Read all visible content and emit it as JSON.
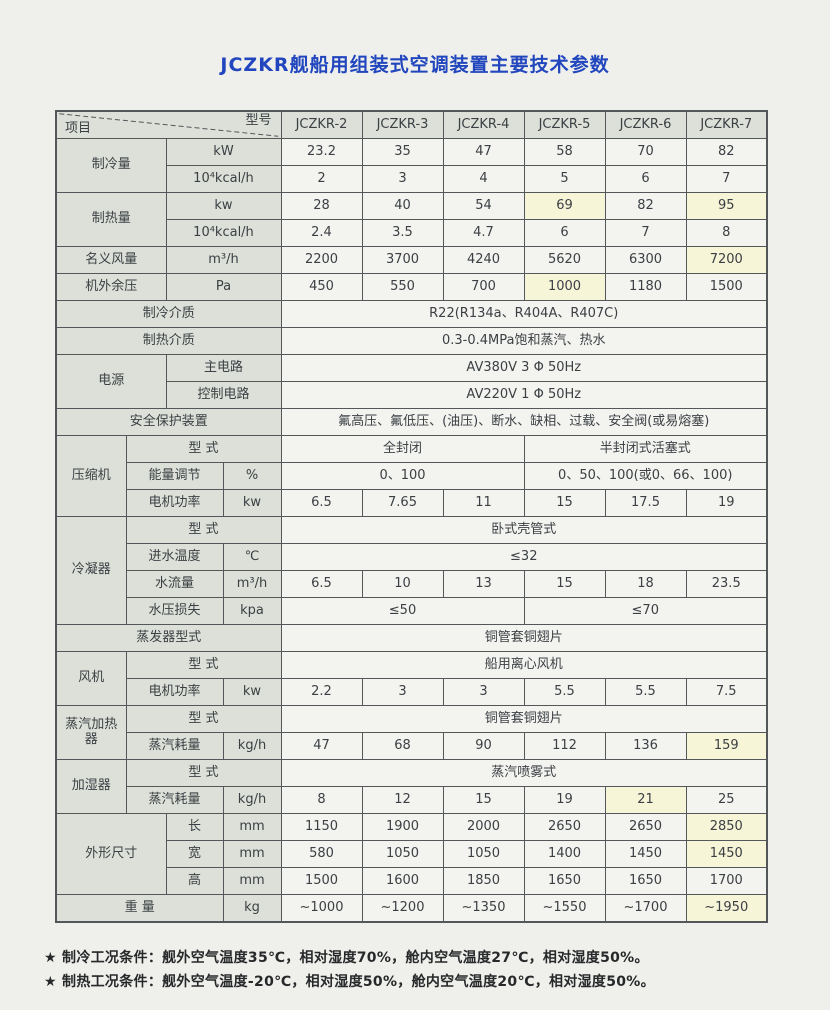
{
  "colors": {
    "page_background": "#eff0ec",
    "title_blue": "#2146bd",
    "label_cell": "#dce0d8",
    "data_cell": "#f3f4f0",
    "highlight_cell": "#f7f5d8",
    "border": "#54575a"
  },
  "title": "JCZKR舰船用组装式空调装置主要技术参数",
  "table": {
    "corner_top_right": "型号",
    "corner_bottom_left": "项目",
    "models": [
      "JCZKR-2",
      "JCZKR-3",
      "JCZKR-4",
      "JCZKR-5",
      "JCZKR-6",
      "JCZKR-7"
    ],
    "rows": [
      [
        {
          "t": "制冷量",
          "lab": true,
          "cs": 2,
          "rs": 2
        },
        {
          "t": "kW",
          "lab": true,
          "cs": 2
        },
        {
          "t": "23.2"
        },
        {
          "t": "35"
        },
        {
          "t": "47"
        },
        {
          "t": "58"
        },
        {
          "t": "70"
        },
        {
          "t": "82"
        }
      ],
      [
        {
          "t": "10⁴kcal/h",
          "lab": true,
          "cs": 2
        },
        {
          "t": "2"
        },
        {
          "t": "3"
        },
        {
          "t": "4"
        },
        {
          "t": "5"
        },
        {
          "t": "6"
        },
        {
          "t": "7"
        }
      ],
      [
        {
          "t": "制热量",
          "lab": true,
          "cs": 2,
          "rs": 2
        },
        {
          "t": "kw",
          "lab": true,
          "cs": 2
        },
        {
          "t": "28"
        },
        {
          "t": "40"
        },
        {
          "t": "54"
        },
        {
          "t": "69",
          "hl": true
        },
        {
          "t": "82"
        },
        {
          "t": "95",
          "hl": true
        }
      ],
      [
        {
          "t": "10⁴kcal/h",
          "lab": true,
          "cs": 2
        },
        {
          "t": "2.4"
        },
        {
          "t": "3.5"
        },
        {
          "t": "4.7"
        },
        {
          "t": "6"
        },
        {
          "t": "7"
        },
        {
          "t": "8"
        }
      ],
      [
        {
          "t": "名义风量",
          "lab": true,
          "cs": 2
        },
        {
          "t": "m³/h",
          "lab": true,
          "cs": 2
        },
        {
          "t": "2200"
        },
        {
          "t": "3700"
        },
        {
          "t": "4240"
        },
        {
          "t": "5620"
        },
        {
          "t": "6300"
        },
        {
          "t": "7200",
          "hl": true
        }
      ],
      [
        {
          "t": "机外余压",
          "lab": true,
          "cs": 2
        },
        {
          "t": "Pa",
          "lab": true,
          "cs": 2
        },
        {
          "t": "450"
        },
        {
          "t": "550"
        },
        {
          "t": "700"
        },
        {
          "t": "1000",
          "hl": true
        },
        {
          "t": "1180"
        },
        {
          "t": "1500"
        }
      ],
      [
        {
          "t": "制冷介质",
          "lab": true,
          "cs": 4
        },
        {
          "t": "R22(R134a、R404A、R407C)",
          "cs": 6
        }
      ],
      [
        {
          "t": "制热介质",
          "lab": true,
          "cs": 4
        },
        {
          "t": "0.3-0.4MPa饱和蒸汽、热水",
          "cs": 6
        }
      ],
      [
        {
          "t": "电源",
          "lab": true,
          "cs": 2,
          "rs": 2
        },
        {
          "t": "主电路",
          "lab": true,
          "cs": 2
        },
        {
          "t": "AV380V 3 Φ 50Hz",
          "cs": 6
        }
      ],
      [
        {
          "t": "控制电路",
          "lab": true,
          "cs": 2
        },
        {
          "t": "AV220V 1 Φ 50Hz",
          "cs": 6
        }
      ],
      [
        {
          "t": "安全保护装置",
          "lab": true,
          "cs": 4
        },
        {
          "t": "氟高压、氟低压、(油压)、断水、缺相、过载、安全阀(或易熔塞)",
          "cs": 6
        }
      ],
      [
        {
          "t": "压缩机",
          "lab": true,
          "rs": 3
        },
        {
          "t": "型 式",
          "lab": true,
          "cs": 3
        },
        {
          "t": "全封闭",
          "cs": 3
        },
        {
          "t": "半封闭式活塞式",
          "cs": 3
        }
      ],
      [
        {
          "t": "能量调节",
          "lab": true,
          "cs": 2
        },
        {
          "t": "%",
          "lab": true
        },
        {
          "t": "0、100",
          "cs": 3
        },
        {
          "t": "0、50、100(或0、66、100)",
          "cs": 3
        }
      ],
      [
        {
          "t": "电机功率",
          "lab": true,
          "cs": 2
        },
        {
          "t": "kw",
          "lab": true
        },
        {
          "t": "6.5"
        },
        {
          "t": "7.65"
        },
        {
          "t": "11"
        },
        {
          "t": "15"
        },
        {
          "t": "17.5"
        },
        {
          "t": "19"
        }
      ],
      [
        {
          "t": "冷凝器",
          "lab": true,
          "rs": 4
        },
        {
          "t": "型 式",
          "lab": true,
          "cs": 3
        },
        {
          "t": "卧式壳管式",
          "cs": 6
        }
      ],
      [
        {
          "t": "进水温度",
          "lab": true,
          "cs": 2
        },
        {
          "t": "℃",
          "lab": true
        },
        {
          "t": "≤32",
          "cs": 6
        }
      ],
      [
        {
          "t": "水流量",
          "lab": true,
          "cs": 2
        },
        {
          "t": "m³/h",
          "lab": true
        },
        {
          "t": "6.5"
        },
        {
          "t": "10"
        },
        {
          "t": "13"
        },
        {
          "t": "15"
        },
        {
          "t": "18"
        },
        {
          "t": "23.5"
        }
      ],
      [
        {
          "t": "水压损失",
          "lab": true,
          "cs": 2
        },
        {
          "t": "kpa",
          "lab": true
        },
        {
          "t": "≤50",
          "cs": 3
        },
        {
          "t": "≤70",
          "cs": 3
        }
      ],
      [
        {
          "t": "蒸发器型式",
          "lab": true,
          "cs": 4
        },
        {
          "t": "铜管套铜翅片",
          "cs": 6
        }
      ],
      [
        {
          "t": "风机",
          "lab": true,
          "rs": 2
        },
        {
          "t": "型 式",
          "lab": true,
          "cs": 3
        },
        {
          "t": "船用离心风机",
          "cs": 6
        }
      ],
      [
        {
          "t": "电机功率",
          "lab": true,
          "cs": 2
        },
        {
          "t": "kw",
          "lab": true
        },
        {
          "t": "2.2"
        },
        {
          "t": "3"
        },
        {
          "t": "3"
        },
        {
          "t": "5.5"
        },
        {
          "t": "5.5"
        },
        {
          "t": "7.5"
        }
      ],
      [
        {
          "t": "蒸汽加热器",
          "lab": true,
          "rs": 2
        },
        {
          "t": "型 式",
          "lab": true,
          "cs": 3
        },
        {
          "t": "铜管套铜翅片",
          "cs": 6
        }
      ],
      [
        {
          "t": "蒸汽耗量",
          "lab": true,
          "cs": 2
        },
        {
          "t": "kg/h",
          "lab": true
        },
        {
          "t": "47"
        },
        {
          "t": "68"
        },
        {
          "t": "90"
        },
        {
          "t": "112"
        },
        {
          "t": "136"
        },
        {
          "t": "159",
          "hl": true
        }
      ],
      [
        {
          "t": "加湿器",
          "lab": true,
          "rs": 2
        },
        {
          "t": "型 式",
          "lab": true,
          "cs": 3
        },
        {
          "t": "蒸汽喷雾式",
          "cs": 6
        }
      ],
      [
        {
          "t": "蒸汽耗量",
          "lab": true,
          "cs": 2
        },
        {
          "t": "kg/h",
          "lab": true
        },
        {
          "t": "8"
        },
        {
          "t": "12"
        },
        {
          "t": "15"
        },
        {
          "t": "19"
        },
        {
          "t": "21",
          "hl": true
        },
        {
          "t": "25"
        }
      ],
      [
        {
          "t": "外形尺寸",
          "lab": true,
          "cs": 2,
          "rs": 3
        },
        {
          "t": "长",
          "lab": true
        },
        {
          "t": "mm",
          "lab": true
        },
        {
          "t": "1150"
        },
        {
          "t": "1900"
        },
        {
          "t": "2000"
        },
        {
          "t": "2650"
        },
        {
          "t": "2650"
        },
        {
          "t": "2850",
          "hl": true
        }
      ],
      [
        {
          "t": "宽",
          "lab": true
        },
        {
          "t": "mm",
          "lab": true
        },
        {
          "t": "580"
        },
        {
          "t": "1050"
        },
        {
          "t": "1050"
        },
        {
          "t": "1400"
        },
        {
          "t": "1450"
        },
        {
          "t": "1450",
          "hl": true
        }
      ],
      [
        {
          "t": "高",
          "lab": true
        },
        {
          "t": "mm",
          "lab": true
        },
        {
          "t": "1500"
        },
        {
          "t": "1600"
        },
        {
          "t": "1850"
        },
        {
          "t": "1650"
        },
        {
          "t": "1650"
        },
        {
          "t": "1700"
        }
      ],
      [
        {
          "t": "重 量",
          "lab": true,
          "cs": 3
        },
        {
          "t": "kg",
          "lab": true
        },
        {
          "t": "~1000"
        },
        {
          "t": "~1200"
        },
        {
          "t": "~1350"
        },
        {
          "t": "~1550"
        },
        {
          "t": "~1700"
        },
        {
          "t": "~1950",
          "hl": true
        }
      ]
    ]
  },
  "footnotes": [
    "★ 制冷工况条件：舰外空气温度35℃，相对湿度70%，舱内空气温度27℃，相对湿度50%。",
    "★ 制热工况条件：舰外空气温度-20℃，相对湿度50%，舱内空气温度20℃，相对湿度50%。"
  ]
}
